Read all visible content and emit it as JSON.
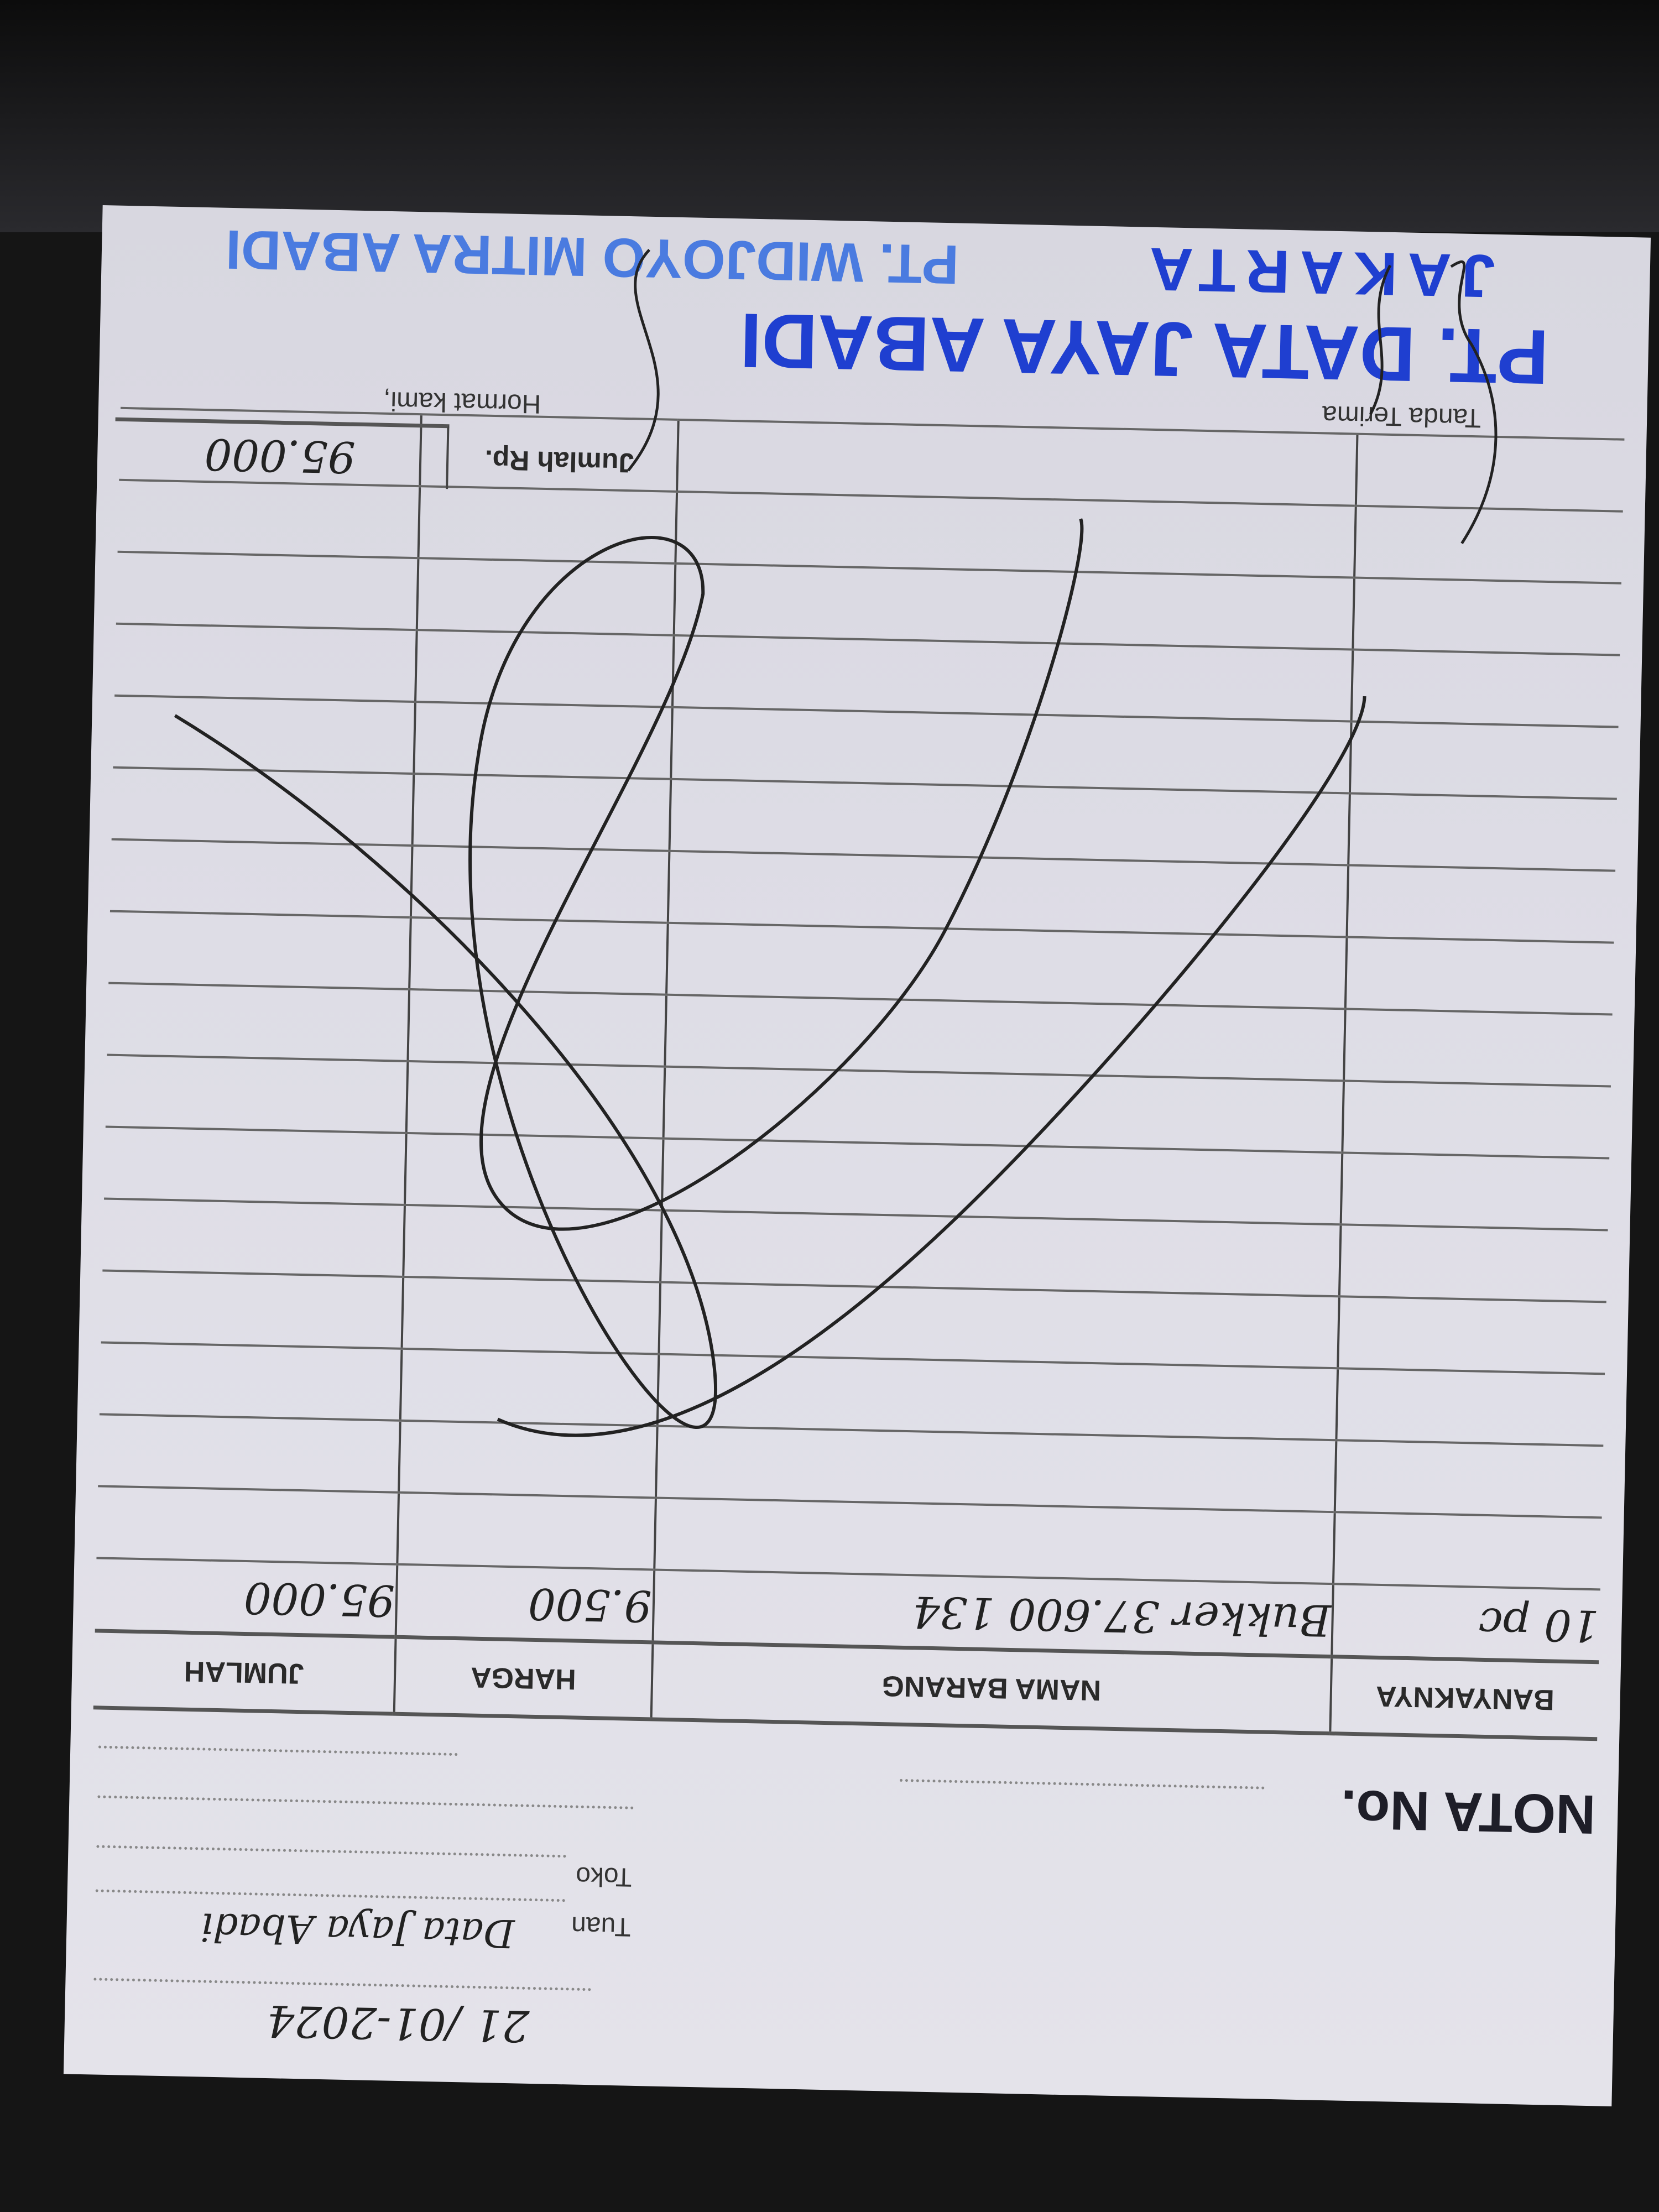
{
  "header": {
    "date_handwritten": "21 /01-2024",
    "tuan_label": "Tuan",
    "toko_label": "Toko",
    "tuan_value_handwritten": "Data Jaya Abadi",
    "nota_label": "NOTA No."
  },
  "table": {
    "columns": [
      "BANYAKNYA",
      "NAMA BARANG",
      "HARGA",
      "JUMLAH"
    ],
    "rows": [
      {
        "qty": "10 pc",
        "item": "Bukker 37.600 134",
        "price": "9.500",
        "amount": "95.000"
      }
    ],
    "total_label": "Jumlah Rp.",
    "total_value": "95.000"
  },
  "footer": {
    "tanda_terima": "Tanda Terima",
    "hormat_kami": "Hormat kami,",
    "stamp_line1": "PT. DATA JAYA ABADI",
    "stamp_line2": "JAKARTA",
    "faded_stamp": "PT. WIDJOYO MITRA ABADI"
  },
  "colors": {
    "stamp_ink": "#1f3fd0",
    "paper": "#e0dfe7",
    "background": "#151515"
  }
}
